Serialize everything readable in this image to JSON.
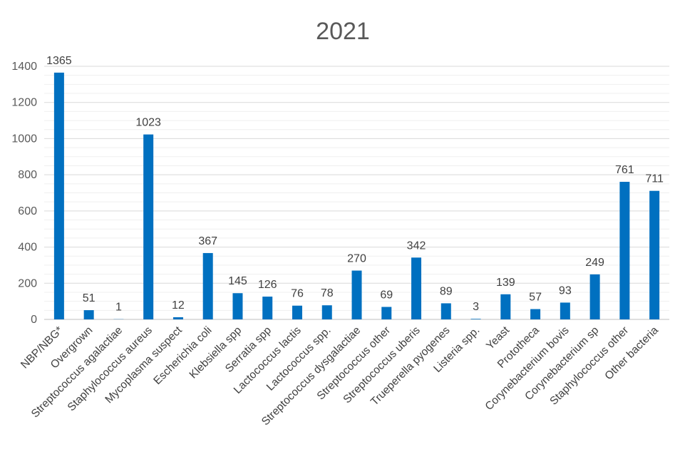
{
  "chart_data": {
    "type": "bar",
    "title": "2021",
    "xlabel": "",
    "ylabel": "",
    "ylim": [
      0,
      1400
    ],
    "yticks": [
      0,
      200,
      400,
      600,
      800,
      1000,
      1200,
      1400
    ],
    "grid": true,
    "legend": "none",
    "bar_color": "#0070C0",
    "categories": [
      "NBP/NBG*",
      "Overgrown",
      "Streptococcus agalactiae",
      "Staphylococcus aureus",
      "Mycoplasma suspect",
      "Escherichia coli",
      "Klebsiella spp",
      "Serratia spp",
      "Lactococcus lactis",
      "Lactococcus spp.",
      "Streptococcus dysgalactiae",
      "Streptococcus other",
      "Streptococcus uberis",
      "Trueperella pyogenes",
      "Listeria spp.",
      "Yeast",
      "Prototheca",
      "Corynebacterium bovis",
      "Corynebacterium sp",
      "Staphylococcus other",
      "Other bacteria"
    ],
    "values": [
      1365,
      51,
      1,
      1023,
      12,
      367,
      145,
      126,
      76,
      78,
      270,
      69,
      342,
      89,
      3,
      139,
      57,
      93,
      249,
      761,
      711
    ]
  }
}
